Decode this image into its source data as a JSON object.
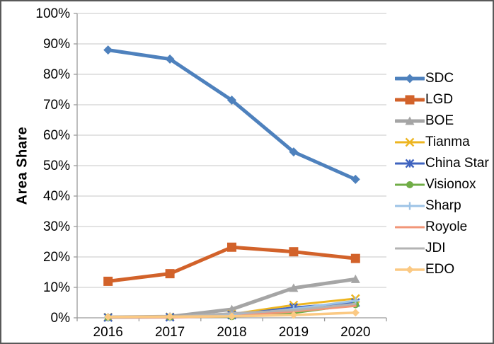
{
  "frame": {
    "background": "#ffffff",
    "border_color": "#595959",
    "grid_color": "#d2d2d2",
    "axis_color": "#9b9b9b",
    "tick_label_color": "#000000"
  },
  "chart_data": {
    "type": "line",
    "title": "",
    "xlabel": "",
    "ylabel": "Area Share",
    "ylim": [
      0,
      100
    ],
    "ytick_step": 10,
    "yticklabels": [
      "0%",
      "10%",
      "20%",
      "30%",
      "40%",
      "50%",
      "60%",
      "70%",
      "80%",
      "90%",
      "100%"
    ],
    "grid": true,
    "legend_position": "right",
    "categories": [
      "2016",
      "2017",
      "2018",
      "2019",
      "2020"
    ],
    "series": [
      {
        "name": "SDC",
        "color": "#4e81bd",
        "marker": "diamond",
        "line_width": 5,
        "values": [
          88,
          85,
          71.5,
          54.5,
          45.5
        ]
      },
      {
        "name": "LGD",
        "color": "#d2622a",
        "marker": "square",
        "line_width": 5,
        "values": [
          12,
          14.5,
          23.2,
          21.7,
          19.5
        ]
      },
      {
        "name": "BOE",
        "color": "#a5a5a5",
        "marker": "triangle",
        "line_width": 5,
        "values": [
          0.2,
          0.4,
          2.8,
          9.8,
          12.7
        ]
      },
      {
        "name": "Tianma",
        "color": "#edb520",
        "marker": "x",
        "line_width": 3,
        "values": [
          0.2,
          0.3,
          1.2,
          4.2,
          6.3
        ]
      },
      {
        "name": "China Star",
        "color": "#3f63bf",
        "marker": "star",
        "line_width": 3,
        "values": [
          0.1,
          0.2,
          0.9,
          3.4,
          5.0
        ]
      },
      {
        "name": "Visionox",
        "color": "#70ad47",
        "marker": "circle",
        "line_width": 3,
        "values": [
          0.1,
          0.2,
          0.4,
          1.6,
          4.3
        ]
      },
      {
        "name": "Sharp",
        "color": "#9dc3e6",
        "marker": "plus",
        "line_width": 3,
        "values": [
          0.2,
          0.3,
          0.8,
          2.9,
          5.6
        ]
      },
      {
        "name": "Royole",
        "color": "#f19678",
        "marker": "none",
        "line_width": 3,
        "values": [
          0,
          0.1,
          0.5,
          2.1,
          3.9
        ]
      },
      {
        "name": "JDI",
        "color": "#b3b3b3",
        "marker": "none",
        "line_width": 3,
        "values": [
          0.1,
          0.3,
          1.5,
          2.5,
          4.6
        ]
      },
      {
        "name": "EDO",
        "color": "#fbc983",
        "marker": "diamond",
        "line_width": 3.5,
        "values": [
          0.3,
          0.4,
          0.5,
          0.9,
          1.7
        ]
      }
    ]
  }
}
